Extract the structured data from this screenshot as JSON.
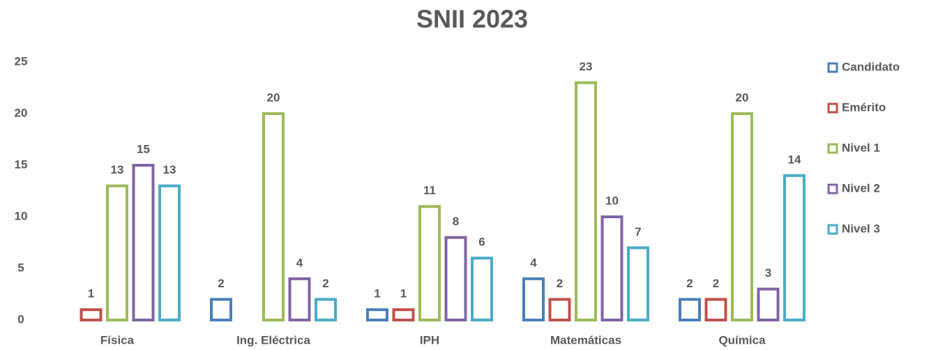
{
  "chart_data": {
    "type": "bar",
    "title": "SNII 2023",
    "categories": [
      "Física",
      "Ing. Eléctrica",
      "IPH",
      "Matemáticas",
      "Química"
    ],
    "series": [
      {
        "name": "Candidato",
        "color": "#4a7ebb",
        "values": [
          null,
          2,
          1,
          4,
          2
        ]
      },
      {
        "name": "Emérito",
        "color": "#c0504d",
        "values": [
          1,
          null,
          1,
          2,
          2
        ]
      },
      {
        "name": "Nivel 1",
        "color": "#9bbb59",
        "values": [
          13,
          20,
          11,
          23,
          20
        ]
      },
      {
        "name": "Nivel 2",
        "color": "#8064a2",
        "values": [
          15,
          4,
          8,
          10,
          3
        ]
      },
      {
        "name": "Nivel 3",
        "color": "#4bacc6",
        "values": [
          13,
          2,
          6,
          7,
          14
        ]
      }
    ],
    "ylim": [
      0,
      25
    ],
    "yticks": [
      0,
      5,
      10,
      15,
      20,
      25
    ],
    "grid": false,
    "legend": "right"
  }
}
